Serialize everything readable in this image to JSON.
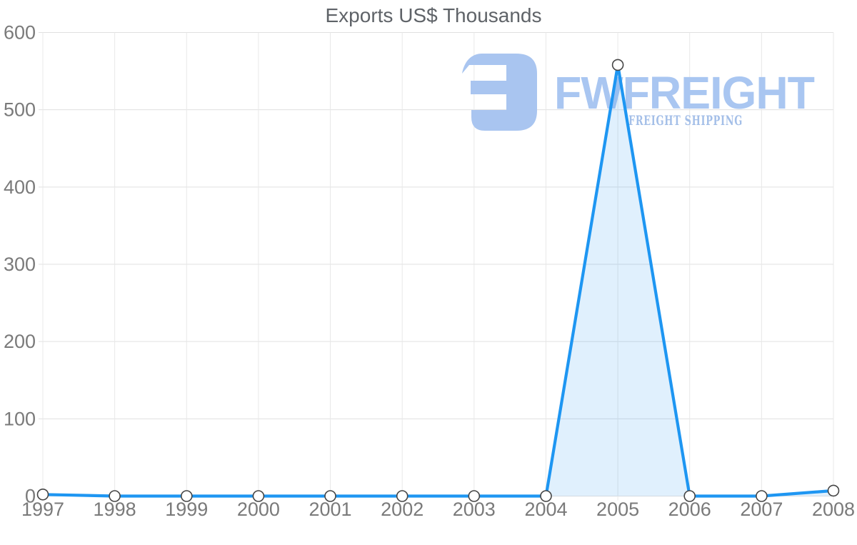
{
  "page": {
    "background": "#ffffff"
  },
  "chart_data": {
    "type": "area",
    "title": "Exports US$ Thousands",
    "x": [
      1997,
      1998,
      1999,
      2000,
      2001,
      2002,
      2003,
      2004,
      2005,
      2006,
      2007,
      2008
    ],
    "series": [
      {
        "name": "Exports US$ Thousands",
        "values": [
          2,
          0,
          0,
          0,
          0,
          0,
          0,
          0,
          558,
          0,
          0,
          7
        ]
      }
    ],
    "xlabel": "",
    "ylabel": "",
    "ylim": [
      0,
      600
    ],
    "yticks": [
      0,
      100,
      200,
      300,
      400,
      500,
      600
    ],
    "grid": true,
    "legend": "none",
    "line_color": "#1e96f2",
    "fill_color": "#2196f3",
    "fill_opacity": "0.14",
    "marker_fill": "#ffffff",
    "marker_stroke": "#454545",
    "gridline_color_h": "#e0e0e0",
    "gridline_color_v": "#e8e8e8"
  },
  "watermark": {
    "brand": "FWFREIGHT",
    "tagline": "FREIGHT SHIPPING",
    "color": "#a9c5f0",
    "brand_color": "#a9c6f1",
    "tagline_color": "#a4bfe8"
  }
}
